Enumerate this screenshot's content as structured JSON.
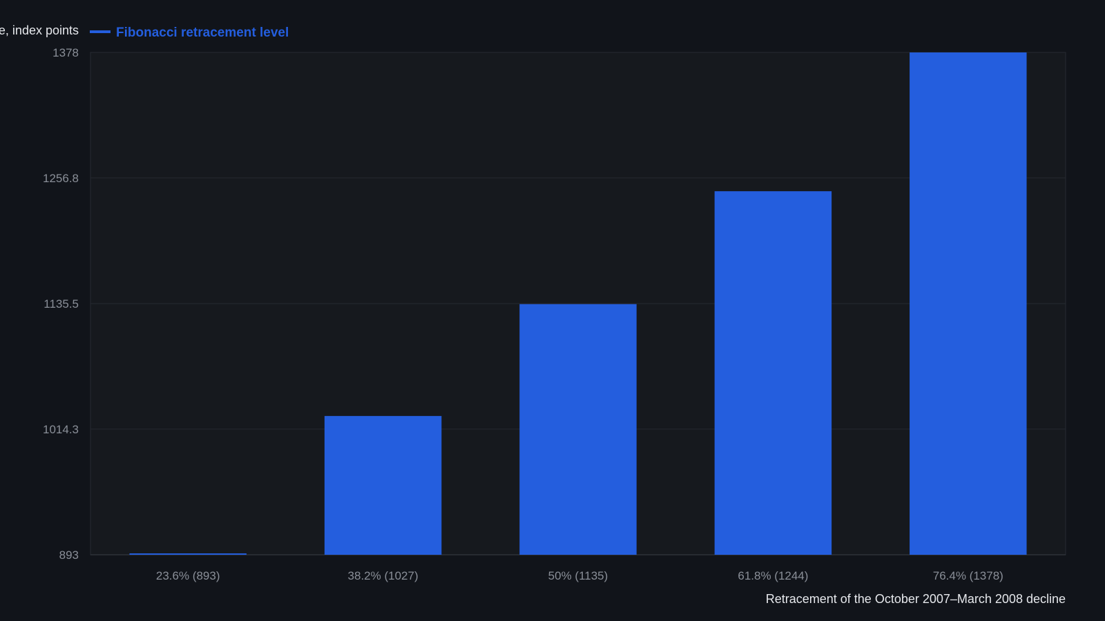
{
  "colors": {
    "background": "#11141a",
    "plot_background": "#16191e",
    "grid": "#262a31",
    "bar": "#245ede",
    "tick_text": "#8a8f98",
    "axis_title_text": "#e6e8ec"
  },
  "chart_data": {
    "type": "bar",
    "title": "",
    "xlabel": "Retracement of the October 2007–March 2008 decline",
    "ylabel": "e, index points",
    "categories": [
      "23.6% (893)",
      "38.2% (1027)",
      "50% (1135)",
      "61.8% (1244)",
      "76.4% (1378)"
    ],
    "series": [
      {
        "name": "Fibonacci retracement level",
        "values": [
          893,
          1027,
          1135,
          1244,
          1378
        ]
      }
    ],
    "ylim": [
      893,
      1378
    ],
    "yticks": [
      "893",
      "1014.3",
      "1135.5",
      "1256.8",
      "1378"
    ],
    "grid": true,
    "legend_position": "top-left"
  }
}
